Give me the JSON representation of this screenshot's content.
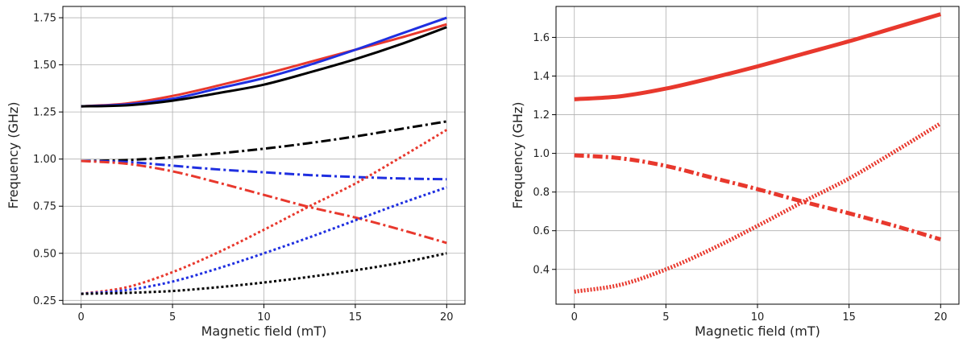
{
  "chart_data": [
    {
      "type": "line",
      "xlabel": "Magnetic field (mT)",
      "ylabel": "Frequency (GHz)",
      "xlim": [
        -1,
        21
      ],
      "ylim": [
        0.23,
        1.81
      ],
      "xticks": [
        0,
        5,
        10,
        15,
        20
      ],
      "yticks": [
        0.25,
        0.5,
        0.75,
        1.0,
        1.25,
        1.5,
        1.75
      ],
      "ytick_labels": [
        "0.25",
        "0.50",
        "0.75",
        "1.00",
        "1.25",
        "1.50",
        "1.75"
      ],
      "grid": true,
      "series": [
        {
          "color": "#e8382d",
          "style": "solid",
          "x": [
            0,
            2.5,
            5,
            7.5,
            10,
            12.5,
            15,
            17.5,
            20
          ],
          "y": [
            1.28,
            1.295,
            1.335,
            1.39,
            1.45,
            1.515,
            1.58,
            1.645,
            1.715
          ]
        },
        {
          "color": "#1f2fe0",
          "style": "solid",
          "x": [
            0,
            2.5,
            5,
            7.5,
            10,
            12.5,
            15,
            17.5,
            20
          ],
          "y": [
            1.28,
            1.29,
            1.32,
            1.375,
            1.43,
            1.5,
            1.58,
            1.665,
            1.75
          ]
        },
        {
          "color": "#000000",
          "style": "solid",
          "x": [
            0,
            2.5,
            5,
            7.5,
            10,
            12.5,
            15,
            17.5,
            20
          ],
          "y": [
            1.28,
            1.285,
            1.31,
            1.35,
            1.395,
            1.46,
            1.53,
            1.61,
            1.7
          ]
        },
        {
          "color": "#000000",
          "style": "dashdot",
          "x": [
            0,
            2.5,
            5,
            7.5,
            10,
            12.5,
            15,
            17.5,
            20
          ],
          "y": [
            0.99,
            0.995,
            1.01,
            1.03,
            1.055,
            1.085,
            1.12,
            1.16,
            1.2
          ]
        },
        {
          "color": "#1f2fe0",
          "style": "dashdot",
          "x": [
            0,
            2.5,
            5,
            7.5,
            10,
            12.5,
            15,
            17.5,
            20
          ],
          "y": [
            0.99,
            0.985,
            0.965,
            0.945,
            0.93,
            0.915,
            0.905,
            0.897,
            0.893
          ]
        },
        {
          "color": "#e8382d",
          "style": "dashdot",
          "x": [
            0,
            2.5,
            5,
            7.5,
            10,
            12.5,
            15,
            17.5,
            20
          ],
          "y": [
            0.99,
            0.975,
            0.935,
            0.875,
            0.81,
            0.745,
            0.69,
            0.625,
            0.555
          ]
        },
        {
          "color": "#e8382d",
          "style": "dotted",
          "x": [
            0,
            2.5,
            5,
            7.5,
            10,
            12.5,
            15,
            17.5,
            20
          ],
          "y": [
            0.285,
            0.32,
            0.4,
            0.505,
            0.625,
            0.75,
            0.87,
            1.01,
            1.155
          ]
        },
        {
          "color": "#1f2fe0",
          "style": "dotted",
          "x": [
            0,
            2.5,
            5,
            7.5,
            10,
            12.5,
            15,
            17.5,
            20
          ],
          "y": [
            0.285,
            0.305,
            0.35,
            0.42,
            0.5,
            0.585,
            0.675,
            0.765,
            0.85
          ]
        },
        {
          "color": "#000000",
          "style": "dotted",
          "x": [
            0,
            2.5,
            5,
            7.5,
            10,
            12.5,
            15,
            17.5,
            20
          ],
          "y": [
            0.285,
            0.29,
            0.3,
            0.32,
            0.345,
            0.375,
            0.41,
            0.45,
            0.5
          ]
        }
      ]
    },
    {
      "type": "line",
      "xlabel": "Magnetic field (mT)",
      "ylabel": "Frequency (GHz)",
      "xlim": [
        -1,
        21
      ],
      "ylim": [
        0.22,
        1.76
      ],
      "xticks": [
        0,
        5,
        10,
        15,
        20
      ],
      "yticks": [
        0.4,
        0.6,
        0.8,
        1.0,
        1.2,
        1.4,
        1.6
      ],
      "ytick_labels": [
        "0.4",
        "0.6",
        "0.8",
        "1.0",
        "1.2",
        "1.4",
        "1.6"
      ],
      "grid": true,
      "series": [
        {
          "color": "#e8382d",
          "style": "solid",
          "x": [
            0,
            2.5,
            5,
            7.5,
            10,
            12.5,
            15,
            17.5,
            20
          ],
          "y": [
            1.28,
            1.295,
            1.335,
            1.39,
            1.45,
            1.515,
            1.58,
            1.65,
            1.72
          ]
        },
        {
          "color": "#e8382d",
          "style": "dashdot",
          "x": [
            0,
            2.5,
            5,
            7.5,
            10,
            12.5,
            15,
            17.5,
            20
          ],
          "y": [
            0.99,
            0.975,
            0.935,
            0.875,
            0.815,
            0.75,
            0.69,
            0.625,
            0.555
          ]
        },
        {
          "color": "#e8382d",
          "style": "dotted",
          "x": [
            0,
            2.5,
            5,
            7.5,
            10,
            12.5,
            15,
            17.5,
            20
          ],
          "y": [
            0.285,
            0.32,
            0.4,
            0.505,
            0.625,
            0.75,
            0.87,
            1.01,
            1.155
          ]
        }
      ]
    }
  ]
}
